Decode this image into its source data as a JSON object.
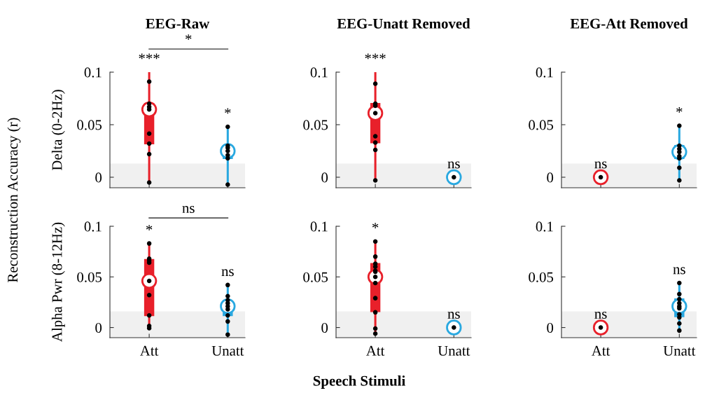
{
  "chart_data": [
    {
      "type": "box",
      "title": "EEG-Raw",
      "ylabel": "Delta (0-2Hz)",
      "categories": [
        "Att",
        "Unatt"
      ],
      "colors": [
        "#e8202a",
        "#29a8e0"
      ],
      "ylim": [
        -0.01,
        0.1
      ],
      "yticks": [
        0,
        0.05,
        0.1
      ],
      "tick_labels": "y",
      "boxes": [
        {
          "low": -0.005,
          "q1": 0.032,
          "median": 0.0645,
          "q3": 0.07,
          "high": 0.1
        },
        {
          "low": -0.007,
          "q1": 0.018,
          "median": 0.025,
          "q3": 0.03,
          "high": 0.048
        }
      ],
      "series": [
        {
          "type": "scatter",
          "marker": "circle",
          "color": "#000000",
          "x": [
            "Att",
            "Att",
            "Att",
            "Att",
            "Att",
            "Att",
            "Att",
            "Unatt",
            "Unatt",
            "Unatt",
            "Unatt",
            "Unatt",
            "Unatt"
          ],
          "values": [
            0.091,
            0.07,
            0.067,
            0.0415,
            0.032,
            0.022,
            -0.005,
            0.048,
            0.03,
            0.028,
            0.021,
            0.018,
            -0.007
          ]
        }
      ],
      "bands": [
        {
          "axis": "y",
          "from": -0.01,
          "to": 0.013,
          "color": "#f0f0f0"
        }
      ],
      "annotations": [
        {
          "text": "***",
          "x": "Att",
          "y": 0.1
        },
        {
          "text": "*",
          "x": "Unatt",
          "y": 0.048
        },
        "*",
        "Reconstruction Accuracy (r)"
      ]
    },
    {
      "type": "box",
      "title": "EEG-Unatt Removed",
      "categories": [
        "Att",
        "Unatt"
      ],
      "colors": [
        "#e8202a",
        "#29a8e0"
      ],
      "ylim": [
        -0.01,
        0.1
      ],
      "yticks": [
        0,
        0.05,
        0.1
      ],
      "tick_labels": "y",
      "boxes": [
        {
          "low": -0.003,
          "q1": 0.033,
          "median": 0.061,
          "q3": 0.07,
          "high": 0.1
        },
        {
          "low": 0,
          "q1": 0,
          "median": 0,
          "q3": 0,
          "high": 0
        }
      ],
      "series": [
        {
          "type": "scatter",
          "marker": "circle",
          "color": "#000000",
          "x": [
            "Att",
            "Att",
            "Att",
            "Att",
            "Att",
            "Att",
            "Att"
          ],
          "values": [
            0.089,
            0.07,
            0.068,
            0.039,
            0.033,
            0.026,
            -0.003
          ]
        }
      ],
      "bands": [
        {
          "axis": "y",
          "from": -0.01,
          "to": 0.013,
          "color": "#f0f0f0"
        }
      ],
      "annotations": [
        {
          "text": "***",
          "x": "Att",
          "y": 0.1
        },
        {
          "text": "ns",
          "x": "Unatt",
          "y": 0
        }
      ]
    },
    {
      "type": "box",
      "title": "EEG-Att Removed",
      "categories": [
        "Att",
        "Unatt"
      ],
      "colors": [
        "#e8202a",
        "#29a8e0"
      ],
      "ylim": [
        -0.01,
        0.1
      ],
      "yticks": [
        0,
        0.05,
        0.1
      ],
      "tick_labels": "y",
      "boxes": [
        {
          "low": 0,
          "q1": 0,
          "median": 0,
          "q3": 0,
          "high": 0
        },
        {
          "low": -0.003,
          "q1": 0.018,
          "median": 0.024,
          "q3": 0.03,
          "high": 0.049
        }
      ],
      "series": [
        {
          "type": "scatter",
          "marker": "circle",
          "color": "#000000",
          "x": [
            "Unatt",
            "Unatt",
            "Unatt",
            "Unatt",
            "Unatt",
            "Unatt",
            "Unatt"
          ],
          "values": [
            0.049,
            0.03,
            0.027,
            0.02,
            0.018,
            0.009,
            -0.003
          ]
        }
      ],
      "bands": [
        {
          "axis": "y",
          "from": -0.01,
          "to": 0.013,
          "color": "#f0f0f0"
        }
      ],
      "annotations": [
        {
          "text": "ns",
          "x": "Att",
          "y": 0
        },
        {
          "text": "*",
          "x": "Unatt",
          "y": 0.049
        }
      ]
    },
    {
      "type": "box",
      "ylabel": "Alpha Pwr (8-12Hz)",
      "categories": [
        "Att",
        "Unatt"
      ],
      "colors": [
        "#e8202a",
        "#29a8e0"
      ],
      "ylim": [
        -0.01,
        0.1
      ],
      "yticks": [
        0,
        0.05,
        0.1
      ],
      "boxes": [
        {
          "low": -0.001,
          "q1": 0.012,
          "median": 0.046,
          "q3": 0.067,
          "high": 0.083
        },
        {
          "low": -0.007,
          "q1": 0.012,
          "median": 0.021,
          "q3": 0.025,
          "high": 0.042
        }
      ],
      "series": [
        {
          "type": "scatter",
          "marker": "circle",
          "color": "#000000",
          "x": [
            "Att",
            "Att",
            "Att",
            "Att",
            "Att",
            "Att",
            "Att",
            "Att",
            "Unatt",
            "Unatt",
            "Unatt",
            "Unatt",
            "Unatt",
            "Unatt",
            "Unatt",
            "Unatt"
          ],
          "values": [
            0.083,
            0.068,
            0.066,
            0.064,
            0.032,
            0.012,
            0.0016,
            -0.0007,
            0.042,
            0.031,
            0.027,
            0.024,
            0.018,
            0.012,
            0.006,
            -0.007
          ]
        }
      ],
      "bands": [
        {
          "axis": "y",
          "from": -0.01,
          "to": 0.016,
          "color": "#f0f0f0"
        }
      ],
      "annotations": [
        {
          "text": "*",
          "x": "Att",
          "y": 0.083
        },
        {
          "text": "ns",
          "x": "Unatt",
          "y": 0.042
        },
        "ns"
      ]
    },
    {
      "type": "box",
      "xlabel": "Speech Stimuli",
      "categories": [
        "Att",
        "Unatt"
      ],
      "colors": [
        "#e8202a",
        "#29a8e0"
      ],
      "ylim": [
        -0.01,
        0.1
      ],
      "yticks": [
        0,
        0.05,
        0.1
      ],
      "boxes": [
        {
          "low": -0.006,
          "q1": 0.016,
          "median": 0.05,
          "q3": 0.063,
          "high": 0.085
        },
        {
          "low": 0,
          "q1": 0,
          "median": 0,
          "q3": 0,
          "high": 0
        }
      ],
      "series": [
        {
          "type": "scatter",
          "marker": "circle",
          "color": "#000000",
          "x": [
            "Att",
            "Att",
            "Att",
            "Att",
            "Att",
            "Att",
            "Att",
            "Att",
            "Att",
            "Att",
            "Att"
          ],
          "values": [
            0.085,
            0.07,
            0.063,
            0.06,
            0.056,
            0.055,
            0.044,
            0.029,
            0.015,
            -0.001,
            -0.006
          ]
        }
      ],
      "bands": [
        {
          "axis": "y",
          "from": -0.01,
          "to": 0.016,
          "color": "#f0f0f0"
        }
      ],
      "annotations": [
        {
          "text": "*",
          "x": "Att",
          "y": 0.085
        },
        {
          "text": "ns",
          "x": "Unatt",
          "y": 0
        }
      ]
    },
    {
      "type": "box",
      "categories": [
        "Att",
        "Unatt"
      ],
      "colors": [
        "#e8202a",
        "#29a8e0"
      ],
      "ylim": [
        -0.01,
        0.1
      ],
      "yticks": [
        0,
        0.05,
        0.1
      ],
      "boxes": [
        {
          "low": 0,
          "q1": 0,
          "median": 0,
          "q3": 0,
          "high": 0
        },
        {
          "low": -0.003,
          "q1": 0.011,
          "median": 0.021,
          "q3": 0.028,
          "high": 0.044
        }
      ],
      "series": [
        {
          "type": "scatter",
          "marker": "circle",
          "color": "#000000",
          "x": [
            "Unatt",
            "Unatt",
            "Unatt",
            "Unatt",
            "Unatt",
            "Unatt",
            "Unatt",
            "Unatt",
            "Unatt"
          ],
          "values": [
            0.044,
            0.033,
            0.028,
            0.024,
            0.019,
            0.013,
            0.01,
            0.004,
            -0.003
          ]
        }
      ],
      "bands": [
        {
          "axis": "y",
          "from": -0.01,
          "to": 0.016,
          "color": "#f0f0f0"
        }
      ],
      "annotations": [
        {
          "text": "ns",
          "x": "Att",
          "y": 0
        },
        {
          "text": "ns",
          "x": "Unatt",
          "y": 0.044
        }
      ]
    }
  ]
}
